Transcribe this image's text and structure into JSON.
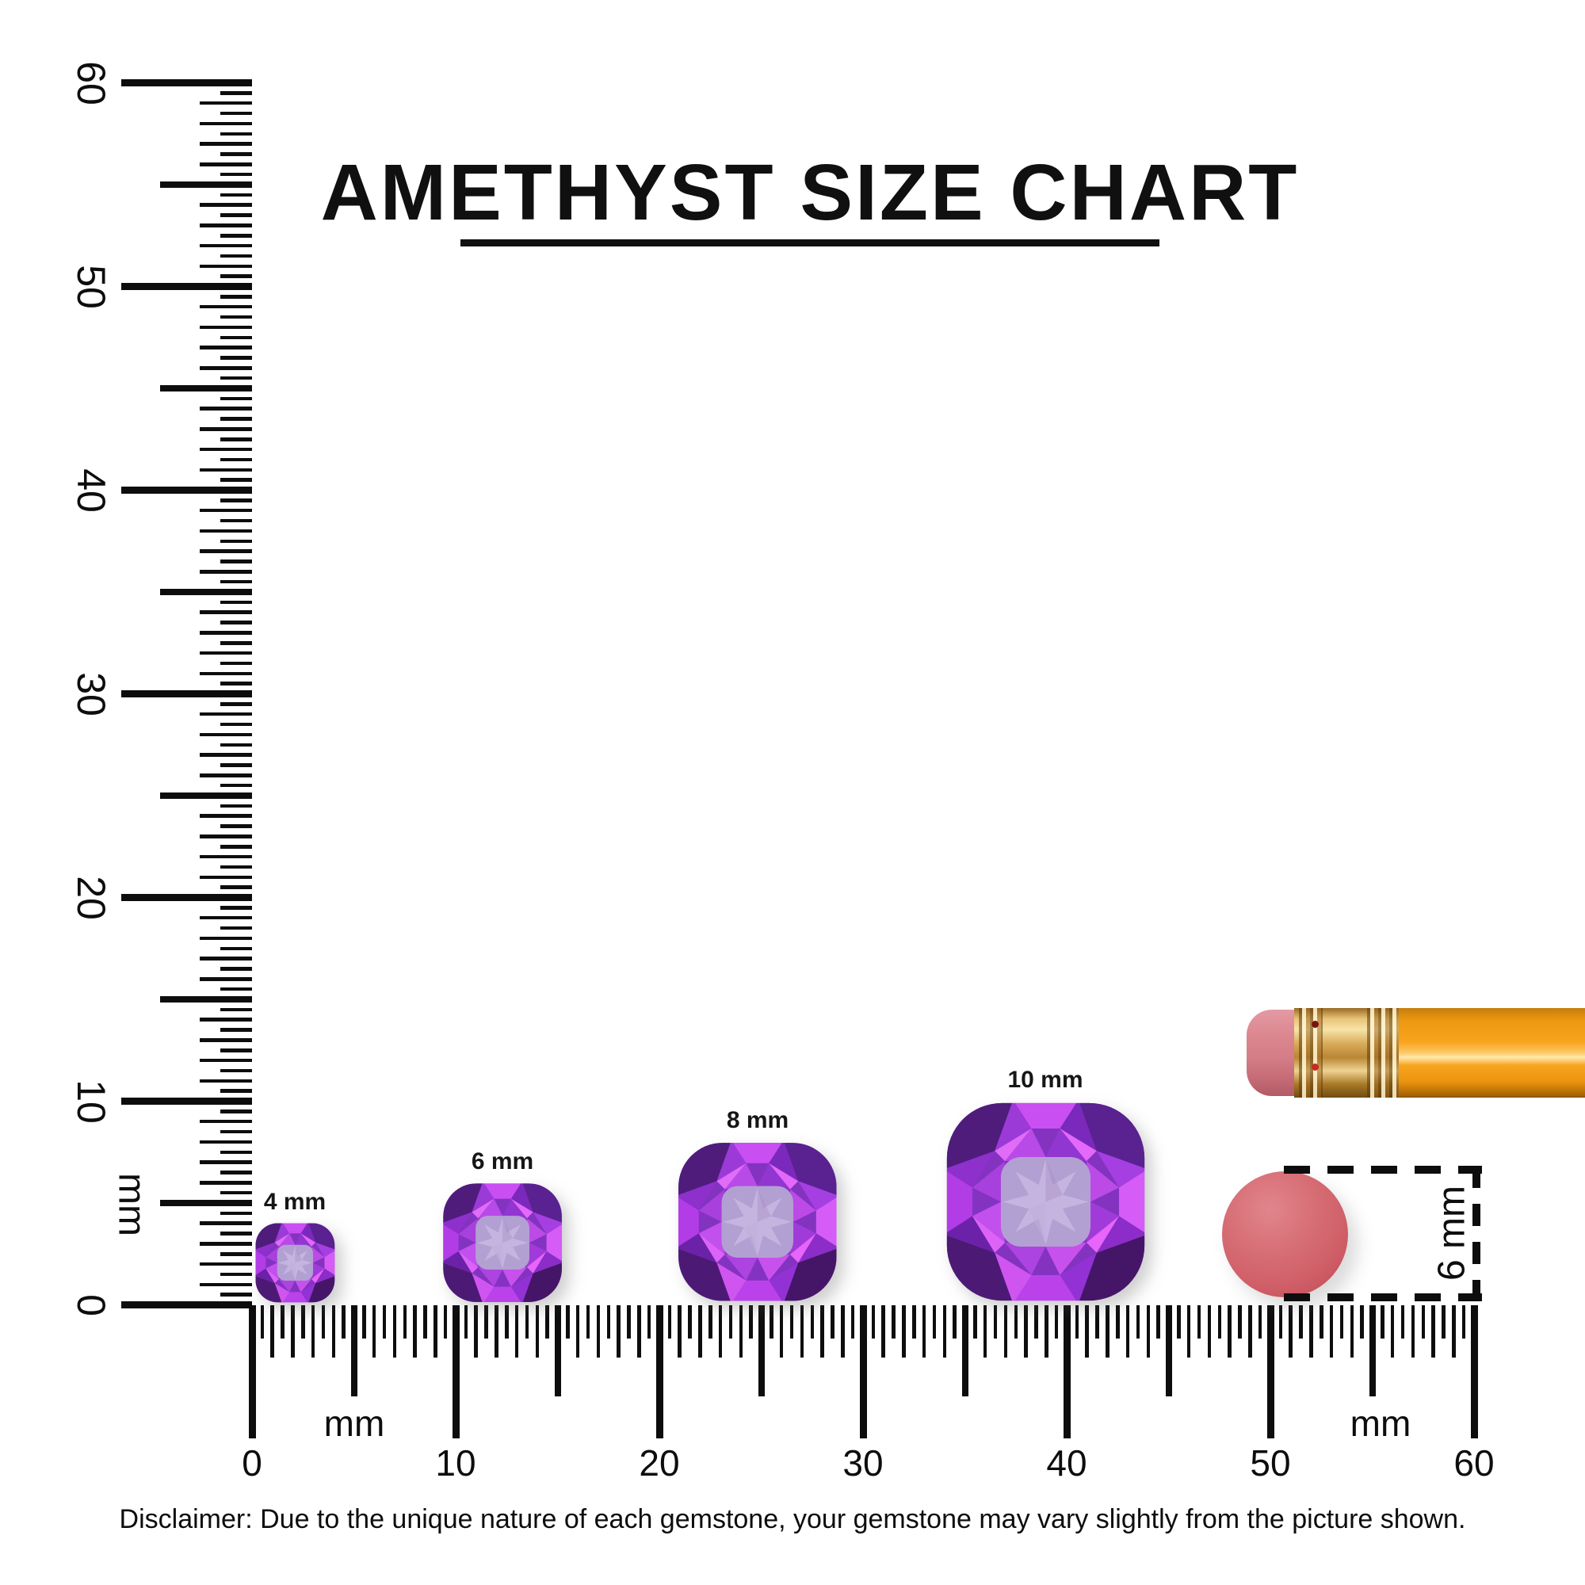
{
  "title": {
    "text": "AMETHYST SIZE CHART"
  },
  "rulers": {
    "unit": "mm",
    "min_mm": 0,
    "max_mm": 60,
    "minor_step_mm": 0.5,
    "label_step_mm": 10,
    "vertical": {
      "labels": [
        "0",
        "10",
        "20",
        "30",
        "40",
        "50",
        "60"
      ],
      "unit_label": "mm"
    },
    "horizontal": {
      "labels": [
        "0",
        "10",
        "20",
        "30",
        "40",
        "50",
        "60"
      ],
      "unit_labels": [
        "mm",
        "mm"
      ]
    }
  },
  "gems": [
    {
      "label": "4 mm",
      "size_mm": 4
    },
    {
      "label": "6 mm",
      "size_mm": 6
    },
    {
      "label": "8 mm",
      "size_mm": 8
    },
    {
      "label": "10 mm",
      "size_mm": 10
    }
  ],
  "eraser_measure": {
    "label": "6 mm",
    "diameter_mm": 6
  },
  "disclaimer": "Disclaimer: Due to the unique nature of each gemstone, your gemstone may vary slightly from the picture shown.",
  "colors": {
    "ink": "#0d0d0d",
    "amethyst_base": "#8333c0",
    "amethyst_bright": "#c94ff2",
    "amethyst_dark": "#4f1c7c",
    "amethyst_table": "#b3a0d2",
    "amethyst_star": "#c6b4e0",
    "pencil_body_orange": "#f8a41d",
    "ferrule_gold": "#d8ab58",
    "eraser_pink": "#d57d88",
    "eraser_end_red": "#d05f68"
  }
}
